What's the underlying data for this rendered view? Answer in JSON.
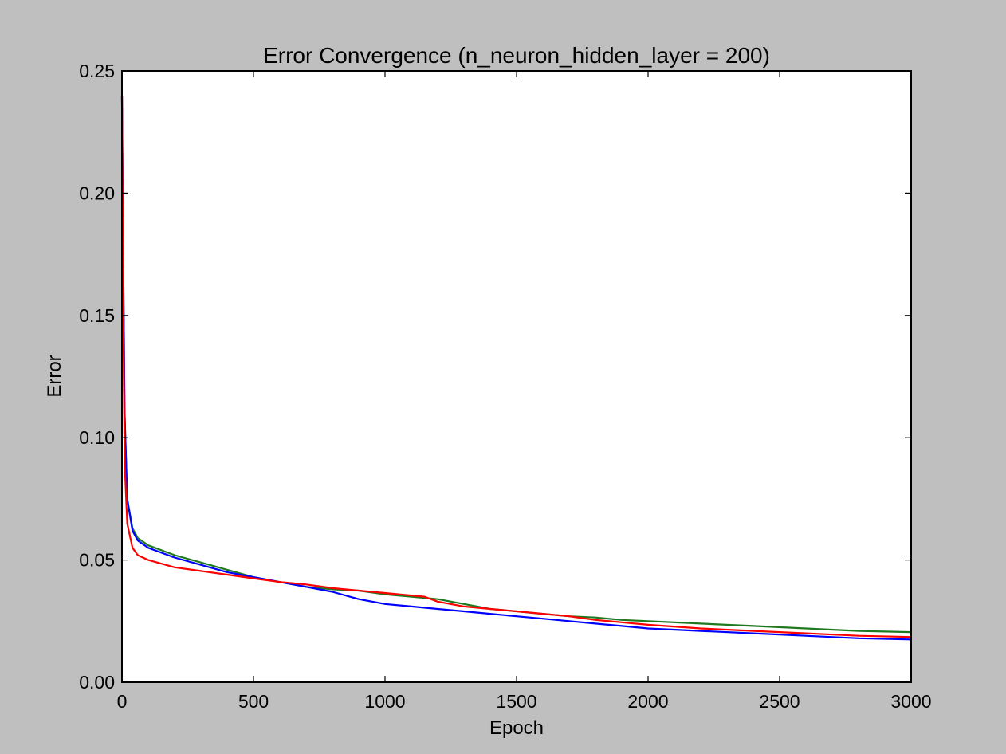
{
  "chart_data": {
    "type": "line",
    "title": "Error Convergence (n_neuron_hidden_layer = 200)",
    "xlabel": "Epoch",
    "ylabel": "Error",
    "xlim": [
      0,
      3000
    ],
    "ylim": [
      0,
      0.25
    ],
    "xticks": [
      0,
      500,
      1000,
      1500,
      2000,
      2500,
      3000
    ],
    "xtick_labels": [
      "0",
      "500",
      "1000",
      "1500",
      "2000",
      "2500",
      "3000"
    ],
    "yticks": [
      0,
      0.05,
      0.1,
      0.15,
      0.2,
      0.25
    ],
    "ytick_labels": [
      "0.00",
      "0.05",
      "0.10",
      "0.15",
      "0.20",
      "0.25"
    ],
    "grid": false,
    "legend": "none",
    "series": [
      {
        "color": "#1f7a1f",
        "x": [
          0,
          5,
          10,
          20,
          40,
          60,
          100,
          200,
          300,
          400,
          500,
          600,
          700,
          800,
          900,
          1000,
          1100,
          1200,
          1300,
          1400,
          1500,
          1600,
          1700,
          1800,
          1900,
          2000,
          2200,
          2400,
          2600,
          2800,
          3000
        ],
        "y": [
          0.24,
          0.17,
          0.11,
          0.075,
          0.063,
          0.059,
          0.056,
          0.052,
          0.049,
          0.046,
          0.043,
          0.041,
          0.039,
          0.038,
          0.0375,
          0.036,
          0.035,
          0.034,
          0.032,
          0.03,
          0.029,
          0.028,
          0.027,
          0.0265,
          0.0255,
          0.025,
          0.024,
          0.023,
          0.022,
          0.021,
          0.0205
        ]
      },
      {
        "color": "#0000ff",
        "x": [
          0,
          5,
          10,
          20,
          40,
          60,
          100,
          200,
          300,
          400,
          500,
          600,
          700,
          800,
          900,
          1000,
          1100,
          1200,
          1300,
          1400,
          1500,
          1600,
          1700,
          1800,
          1900,
          2000,
          2200,
          2400,
          2600,
          2800,
          3000
        ],
        "y": [
          0.24,
          0.17,
          0.11,
          0.075,
          0.062,
          0.058,
          0.055,
          0.051,
          0.048,
          0.045,
          0.043,
          0.041,
          0.039,
          0.037,
          0.034,
          0.032,
          0.031,
          0.03,
          0.029,
          0.028,
          0.027,
          0.026,
          0.025,
          0.024,
          0.023,
          0.022,
          0.021,
          0.02,
          0.019,
          0.018,
          0.0175
        ]
      },
      {
        "color": "#ff0000",
        "x": [
          0,
          5,
          10,
          20,
          40,
          60,
          100,
          200,
          300,
          400,
          500,
          600,
          700,
          800,
          900,
          1000,
          1100,
          1150,
          1200,
          1300,
          1400,
          1500,
          1600,
          1700,
          1800,
          1900,
          2000,
          2200,
          2400,
          2600,
          2800,
          3000
        ],
        "y": [
          0.24,
          0.15,
          0.09,
          0.065,
          0.055,
          0.052,
          0.05,
          0.047,
          0.0455,
          0.044,
          0.0425,
          0.041,
          0.04,
          0.0385,
          0.0375,
          0.0365,
          0.0355,
          0.035,
          0.033,
          0.031,
          0.03,
          0.029,
          0.028,
          0.027,
          0.0255,
          0.0245,
          0.0235,
          0.022,
          0.021,
          0.02,
          0.019,
          0.0185
        ]
      }
    ]
  }
}
